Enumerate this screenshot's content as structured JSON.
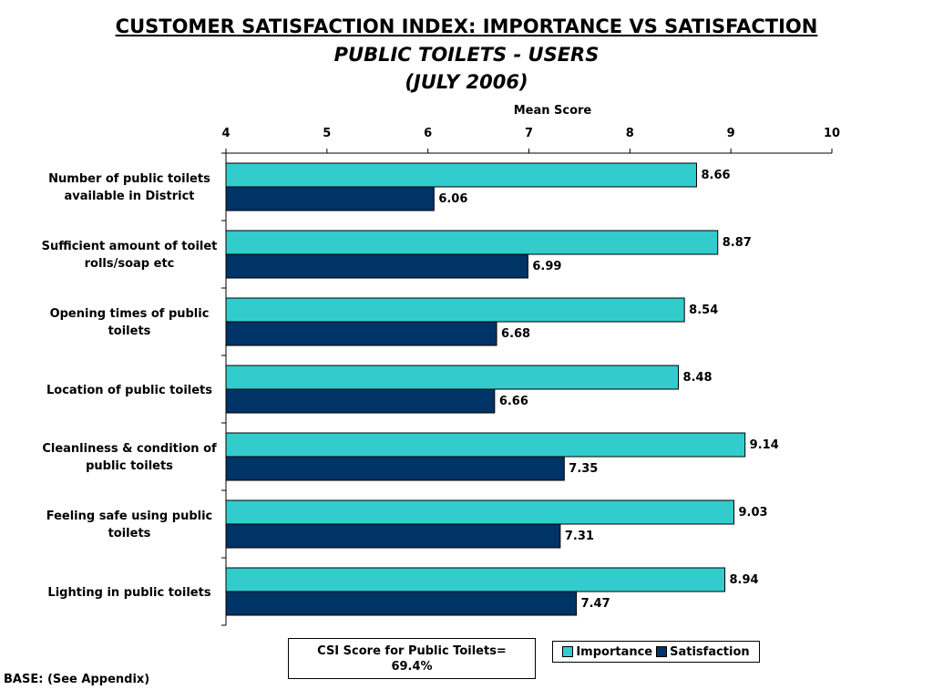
{
  "page": {
    "title_line1": "CUSTOMER SATISFACTION INDEX: IMPORTANCE VS SATISFACTION",
    "title_line2": "PUBLIC TOILETS - USERS",
    "title_line3": "(JULY 2006)",
    "csi_line1": "CSI Score for Public Toilets=",
    "csi_line2": "69.4%",
    "base_note": "BASE: (See Appendix)"
  },
  "chart_data": {
    "type": "bar",
    "orientation": "horizontal",
    "axis_label": "Mean Score",
    "xlim": [
      4,
      10
    ],
    "ticks": [
      4,
      5,
      6,
      7,
      8,
      9,
      10
    ],
    "grid": false,
    "legend_position": "bottom-right",
    "categories": [
      [
        "Number of public toilets",
        "available in District"
      ],
      [
        "Sufficient amount of toilet",
        "rolls/soap etc"
      ],
      [
        "Opening times of public",
        "toilets"
      ],
      [
        "Location of public toilets"
      ],
      [
        "Cleanliness & condition of",
        "public toilets"
      ],
      [
        "Feeling safe using public",
        "toilets"
      ],
      [
        "Lighting in public toilets"
      ]
    ],
    "series": [
      {
        "name": "Importance",
        "color": "#33cccc",
        "values": [
          8.66,
          8.87,
          8.54,
          8.48,
          9.14,
          9.03,
          8.94
        ]
      },
      {
        "name": "Satisfaction",
        "color": "#003366",
        "values": [
          6.06,
          6.99,
          6.68,
          6.66,
          7.35,
          7.31,
          7.47
        ]
      }
    ]
  }
}
